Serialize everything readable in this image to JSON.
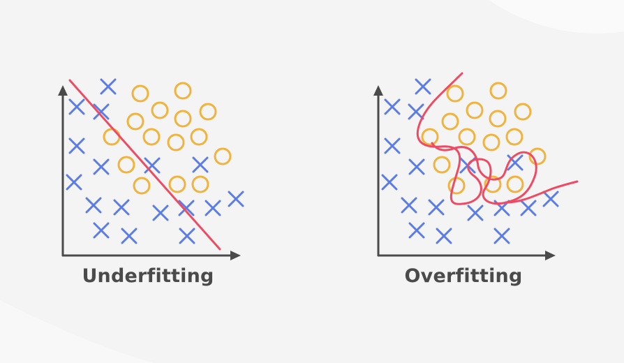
{
  "colors": {
    "background": "#f4f4f4",
    "axis": "#4a4a4a",
    "cross": "#5b7ce6",
    "circle": "#f2b33d",
    "boundary": "#ef4a62"
  },
  "panels": [
    {
      "id": "underfitting",
      "caption": "Underfitting"
    },
    {
      "id": "overfitting",
      "caption": "Overfitting"
    }
  ],
  "legend_symbols": {
    "class_a_icon": "cross-icon",
    "class_b_icon": "circle-icon"
  }
}
